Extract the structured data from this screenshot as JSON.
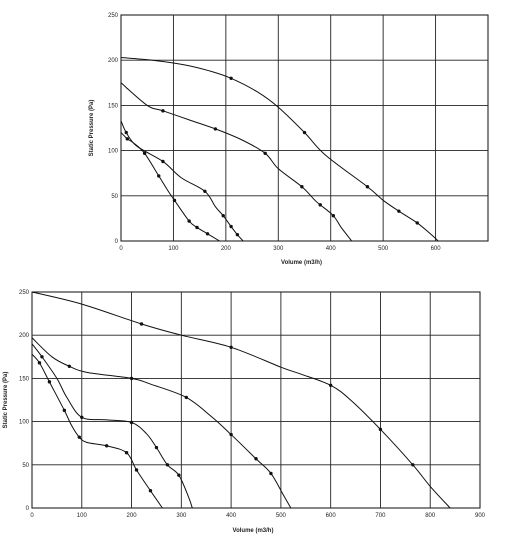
{
  "chart_data": [
    {
      "type": "line",
      "xlabel": "Volume (m3/h)",
      "ylabel": "Static Pressure (Pa)",
      "xlim": [
        0,
        700
      ],
      "ylim": [
        0,
        250
      ],
      "x_ticks": [
        0,
        100,
        200,
        300,
        400,
        500,
        600
      ],
      "y_ticks": [
        0,
        50,
        100,
        150,
        200,
        250
      ],
      "grid": true,
      "series": [
        {
          "points": [
            [
              0,
              120
            ],
            [
              12,
              113
            ],
            [
              25,
              108
            ],
            [
              45,
              97
            ],
            [
              72,
              72
            ],
            [
              88,
              57
            ],
            [
              102,
              45
            ],
            [
              130,
              22
            ],
            [
              145,
              15
            ],
            [
              165,
              8
            ],
            [
              188,
              0
            ]
          ]
        },
        {
          "points": [
            [
              0,
              133
            ],
            [
              10,
              120
            ],
            [
              30,
              105
            ],
            [
              80,
              88
            ],
            [
              115,
              70
            ],
            [
              160,
              55
            ],
            [
              180,
              38
            ],
            [
              195,
              28
            ],
            [
              210,
              16
            ],
            [
              222,
              7
            ],
            [
              233,
              0
            ]
          ]
        },
        {
          "points": [
            [
              0,
              175
            ],
            [
              50,
              150
            ],
            [
              80,
              144
            ],
            [
              130,
              134
            ],
            [
              180,
              124
            ],
            [
              230,
              112
            ],
            [
              275,
              97
            ],
            [
              300,
              80
            ],
            [
              345,
              60
            ],
            [
              370,
              45
            ],
            [
              380,
              40
            ],
            [
              405,
              28
            ],
            [
              420,
              15
            ],
            [
              440,
              0
            ]
          ]
        },
        {
          "points": [
            [
              0,
              203
            ],
            [
              60,
              200
            ],
            [
              120,
              195
            ],
            [
              170,
              188
            ],
            [
              210,
              180
            ],
            [
              260,
              165
            ],
            [
              300,
              148
            ],
            [
              350,
              120
            ],
            [
              390,
              95
            ],
            [
              470,
              60
            ],
            [
              500,
              45
            ],
            [
              530,
              33
            ],
            [
              565,
              20
            ],
            [
              590,
              8
            ],
            [
              605,
              0
            ]
          ]
        }
      ],
      "markers": [
        {
          "series": 0,
          "points": [
            [
              12,
              113
            ],
            [
              45,
              97
            ],
            [
              72,
              72
            ],
            [
              102,
              45
            ],
            [
              130,
              22
            ],
            [
              145,
              15
            ],
            [
              165,
              8
            ]
          ]
        },
        {
          "series": 1,
          "points": [
            [
              10,
              120
            ],
            [
              80,
              88
            ],
            [
              160,
              55
            ],
            [
              195,
              28
            ],
            [
              210,
              16
            ],
            [
              222,
              7
            ]
          ]
        },
        {
          "series": 2,
          "points": [
            [
              80,
              144
            ],
            [
              180,
              124
            ],
            [
              275,
              97
            ],
            [
              345,
              60
            ],
            [
              380,
              40
            ],
            [
              405,
              28
            ]
          ]
        },
        {
          "series": 3,
          "points": [
            [
              210,
              180
            ],
            [
              350,
              120
            ],
            [
              470,
              60
            ],
            [
              530,
              33
            ],
            [
              565,
              20
            ]
          ]
        }
      ]
    },
    {
      "type": "line",
      "xlabel": "Volume (m3/h)",
      "ylabel": "Static Pressure (Pa)",
      "xlim": [
        0,
        900
      ],
      "ylim": [
        0,
        250
      ],
      "x_ticks": [
        0,
        100,
        200,
        300,
        400,
        500,
        600,
        700,
        800,
        900
      ],
      "y_ticks": [
        0,
        50,
        100,
        150,
        200,
        250
      ],
      "grid": true,
      "series": [
        {
          "points": [
            [
              0,
              178
            ],
            [
              15,
              168
            ],
            [
              35,
              146
            ],
            [
              65,
              113
            ],
            [
              80,
              95
            ],
            [
              95,
              82
            ],
            [
              110,
              76
            ],
            [
              150,
              72
            ],
            [
              190,
              64
            ],
            [
              210,
              44
            ],
            [
              238,
              20
            ],
            [
              262,
              0
            ]
          ]
        },
        {
          "points": [
            [
              0,
              190
            ],
            [
              20,
              175
            ],
            [
              50,
              150
            ],
            [
              70,
              128
            ],
            [
              100,
              105
            ],
            [
              150,
              102
            ],
            [
              200,
              99
            ],
            [
              230,
              86
            ],
            [
              250,
              70
            ],
            [
              272,
              50
            ],
            [
              295,
              38
            ],
            [
              315,
              12
            ],
            [
              322,
              0
            ]
          ]
        },
        {
          "points": [
            [
              0,
              197
            ],
            [
              40,
              175
            ],
            [
              75,
              164
            ],
            [
              110,
              157
            ],
            [
              200,
              150
            ],
            [
              240,
              143
            ],
            [
              310,
              128
            ],
            [
              360,
              106
            ],
            [
              400,
              85
            ],
            [
              450,
              57
            ],
            [
              480,
              40
            ],
            [
              505,
              15
            ],
            [
              520,
              0
            ]
          ]
        },
        {
          "points": [
            [
              0,
              250
            ],
            [
              100,
              236
            ],
            [
              220,
              213
            ],
            [
              300,
              200
            ],
            [
              400,
              186
            ],
            [
              500,
              163
            ],
            [
              540,
              155
            ],
            [
              600,
              142
            ],
            [
              640,
              125
            ],
            [
              700,
              91
            ],
            [
              765,
              50
            ],
            [
              800,
              25
            ],
            [
              840,
              0
            ]
          ]
        }
      ],
      "markers": [
        {
          "series": 0,
          "points": [
            [
              15,
              168
            ],
            [
              35,
              146
            ],
            [
              65,
              113
            ],
            [
              95,
              82
            ],
            [
              150,
              72
            ],
            [
              190,
              64
            ],
            [
              210,
              44
            ],
            [
              238,
              20
            ]
          ]
        },
        {
          "series": 1,
          "points": [
            [
              20,
              175
            ],
            [
              100,
              105
            ],
            [
              200,
              99
            ],
            [
              250,
              70
            ],
            [
              272,
              50
            ],
            [
              295,
              38
            ]
          ]
        },
        {
          "series": 2,
          "points": [
            [
              75,
              164
            ],
            [
              200,
              150
            ],
            [
              310,
              128
            ],
            [
              400,
              85
            ],
            [
              450,
              57
            ],
            [
              480,
              40
            ]
          ]
        },
        {
          "series": 3,
          "points": [
            [
              220,
              213
            ],
            [
              400,
              186
            ],
            [
              600,
              142
            ],
            [
              700,
              91
            ],
            [
              765,
              50
            ]
          ]
        }
      ]
    }
  ]
}
